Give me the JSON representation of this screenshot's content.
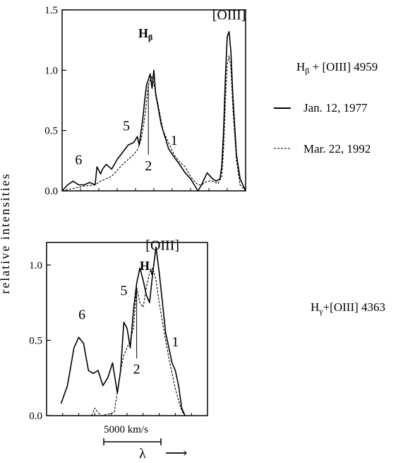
{
  "y_axis_label": "relative intensities",
  "legend": {
    "solid_label": "Jan. 12, 1977",
    "dashed_label": "Mar. 22, 1992"
  },
  "chart_data": [
    {
      "type": "line",
      "name": "top-panel",
      "side_label": "Hβ + [OIII] 4959",
      "title": "Hβ",
      "title_main": "H",
      "title_sub": "β",
      "ylim": [
        0,
        1.5
      ],
      "xlim": [
        0,
        1
      ],
      "y_ticks": [
        "0.0",
        "0.5",
        "1.0",
        "1.5"
      ],
      "annotations": [
        {
          "text": "[OIII]",
          "x": 0.91,
          "y": 1.42
        },
        {
          "text": "6",
          "x": 0.09,
          "y": 0.22
        },
        {
          "text": "5",
          "x": 0.35,
          "y": 0.5
        },
        {
          "text": "1",
          "x": 0.61,
          "y": 0.38
        },
        {
          "text": "2",
          "x": 0.47,
          "y": 0.17
        }
      ],
      "marker_line": {
        "x": 0.47,
        "y_from": 0.3,
        "y_to": 0.88
      },
      "series": [
        {
          "style": "solid",
          "x": [
            0.0,
            0.03,
            0.06,
            0.09,
            0.12,
            0.15,
            0.18,
            0.19,
            0.21,
            0.22,
            0.24,
            0.27,
            0.3,
            0.33,
            0.36,
            0.39,
            0.41,
            0.42,
            0.44,
            0.45,
            0.46,
            0.47,
            0.48,
            0.49,
            0.5,
            0.51,
            0.52,
            0.54,
            0.56,
            0.58,
            0.61,
            0.64,
            0.67,
            0.7,
            0.72,
            0.74,
            0.76,
            0.79,
            0.82,
            0.84,
            0.86,
            0.87,
            0.88,
            0.89,
            0.9,
            0.91,
            0.92,
            0.93,
            0.95,
            0.97,
            1.0
          ],
          "values": [
            0.0,
            0.05,
            0.08,
            0.05,
            0.05,
            0.07,
            0.05,
            0.2,
            0.14,
            0.18,
            0.22,
            0.18,
            0.26,
            0.32,
            0.38,
            0.4,
            0.45,
            0.38,
            0.6,
            0.75,
            0.88,
            0.92,
            0.97,
            0.85,
            1.0,
            0.8,
            0.72,
            0.55,
            0.45,
            0.35,
            0.28,
            0.22,
            0.15,
            0.1,
            0.05,
            0.0,
            0.05,
            0.15,
            0.1,
            0.08,
            0.1,
            0.2,
            0.5,
            0.95,
            1.28,
            1.32,
            1.15,
            0.8,
            0.3,
            0.1,
            0.0
          ]
        },
        {
          "style": "dashed",
          "x": [
            0.0,
            0.06,
            0.12,
            0.18,
            0.21,
            0.24,
            0.27,
            0.3,
            0.33,
            0.36,
            0.39,
            0.41,
            0.43,
            0.45,
            0.47,
            0.49,
            0.51,
            0.53,
            0.55,
            0.58,
            0.61,
            0.64,
            0.67,
            0.7,
            0.72,
            0.74,
            0.76,
            0.79,
            0.82,
            0.85,
            0.87,
            0.88,
            0.89,
            0.9,
            0.91,
            0.92,
            0.93,
            0.95,
            0.97,
            1.0
          ],
          "values": [
            0.0,
            0.02,
            0.04,
            0.05,
            0.08,
            0.1,
            0.12,
            0.17,
            0.22,
            0.26,
            0.3,
            0.34,
            0.42,
            0.6,
            0.88,
            0.95,
            0.82,
            0.66,
            0.5,
            0.4,
            0.3,
            0.24,
            0.2,
            0.12,
            0.08,
            0.05,
            0.05,
            0.08,
            0.08,
            0.06,
            0.12,
            0.35,
            0.75,
            1.05,
            1.12,
            1.02,
            0.7,
            0.25,
            0.05,
            0.0
          ]
        }
      ]
    },
    {
      "type": "line",
      "name": "bottom-panel",
      "side_label": "Hγ+[OIII] 4363",
      "title": "Hγ",
      "title_main": "H",
      "title_sub": "γ",
      "ylim": [
        0,
        1.15
      ],
      "xlim": [
        0,
        1
      ],
      "y_ticks": [
        "0.0",
        "0.5",
        "1.0"
      ],
      "annotations": [
        {
          "text": "[OIII]",
          "x": 0.72,
          "y": 1.1
        },
        {
          "text": "6",
          "x": 0.22,
          "y": 0.64
        },
        {
          "text": "5",
          "x": 0.48,
          "y": 0.8
        },
        {
          "text": "1",
          "x": 0.8,
          "y": 0.46
        },
        {
          "text": "2",
          "x": 0.56,
          "y": 0.28
        }
      ],
      "marker_line": {
        "x": 0.56,
        "y_from": 0.38,
        "y_to": 0.84
      },
      "series": [
        {
          "style": "solid",
          "x": [
            0.09,
            0.13,
            0.17,
            0.2,
            0.23,
            0.26,
            0.29,
            0.32,
            0.35,
            0.38,
            0.41,
            0.44,
            0.46,
            0.48,
            0.5,
            0.52,
            0.54,
            0.56,
            0.58,
            0.6,
            0.62,
            0.64,
            0.66,
            0.68,
            0.7,
            0.72,
            0.74,
            0.76,
            0.78,
            0.8,
            0.82,
            0.84,
            0.86
          ],
          "values": [
            0.08,
            0.2,
            0.45,
            0.52,
            0.48,
            0.3,
            0.28,
            0.3,
            0.2,
            0.25,
            0.35,
            0.15,
            0.3,
            0.62,
            0.58,
            0.45,
            0.7,
            0.88,
            0.98,
            0.9,
            0.8,
            0.75,
            0.95,
            1.12,
            0.95,
            0.75,
            0.55,
            0.45,
            0.35,
            0.3,
            0.2,
            0.05,
            0.0
          ]
        },
        {
          "style": "dashed",
          "x": [
            0.28,
            0.3,
            0.32,
            0.34,
            0.38,
            0.42,
            0.46,
            0.48,
            0.5,
            0.52,
            0.54,
            0.56,
            0.58,
            0.6,
            0.62,
            0.64,
            0.66,
            0.68,
            0.7,
            0.72,
            0.74,
            0.76,
            0.78,
            0.8,
            0.82,
            0.84,
            0.86
          ],
          "values": [
            0.0,
            0.05,
            0.02,
            0.0,
            0.01,
            0.02,
            0.3,
            0.4,
            0.45,
            0.5,
            0.58,
            0.85,
            0.75,
            0.72,
            0.85,
            0.95,
            0.98,
            0.9,
            0.75,
            0.62,
            0.5,
            0.38,
            0.28,
            0.18,
            0.1,
            0.03,
            0.0
          ]
        }
      ]
    }
  ],
  "scale_bar": {
    "label": "5000 km/s"
  },
  "x_axis_label": "λ",
  "arrow_glyph": "⟶"
}
